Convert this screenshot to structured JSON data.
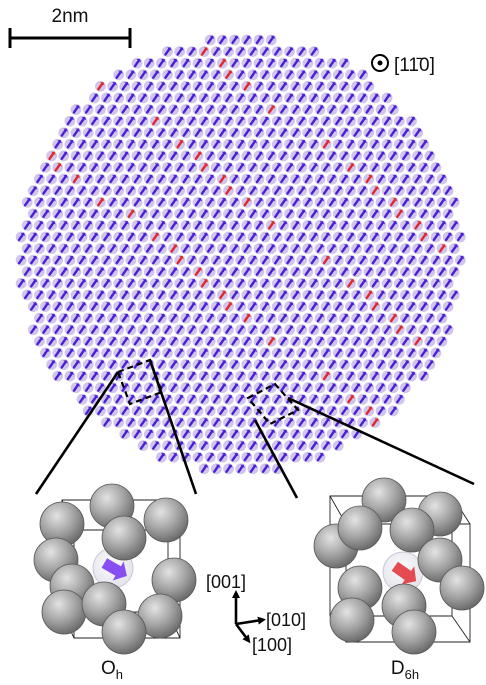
{
  "scale_bar": {
    "label": "2nm"
  },
  "view_direction": {
    "symbol": "⊙",
    "label": "[11̄0]"
  },
  "insets": [
    {
      "id": "oh",
      "label": "O",
      "subscript": "h",
      "moment_color": "#7d3cf0"
    },
    {
      "id": "d6h",
      "label": "D",
      "subscript": "6h",
      "moment_color": "#e2383f"
    }
  ],
  "axes": {
    "z": "[001]",
    "y": "[010]",
    "x": "[100]"
  },
  "colors": {
    "majority_spin": "#4a1fd6",
    "minority_spin": "#e2262f",
    "site_shadow": "#c8bce6",
    "atom": "#9c9c9c"
  }
}
